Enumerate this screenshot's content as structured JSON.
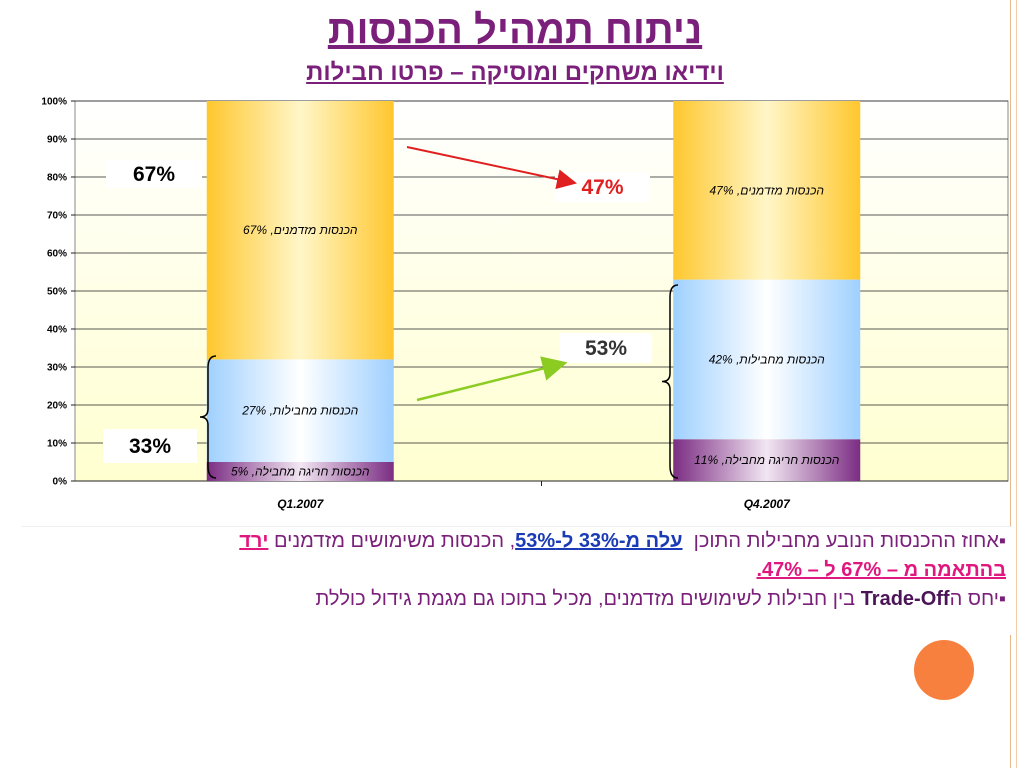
{
  "title": "ניתוח תמהיל הכנסות",
  "subtitle": "וידיאו משחקים ומוסיקה – פרטו חבילות",
  "colors": {
    "title": "#7a1f7a",
    "segment_bottom": "#7b2d83",
    "segment_middle": "#9fd0ff",
    "segment_top": "#ffc72e",
    "arrow_red": "#e02020",
    "arrow_green": "#8ccc22",
    "bullet_orange": "#f7803e"
  },
  "chart_data": {
    "type": "bar",
    "stacked": true,
    "categories": [
      "Q1.2007",
      "Q4.2007"
    ],
    "series": [
      {
        "name": "הכנסות חריגה מחבילה",
        "values": [
          5,
          11
        ]
      },
      {
        "name": "הכנסות מחבילות",
        "values": [
          27,
          42
        ]
      },
      {
        "name": "הכנסות מזדמנים",
        "values": [
          67,
          47
        ]
      }
    ],
    "data_labels": [
      [
        "הכנסות חריגה מחבילה, 5%",
        "הכנסות חריגה מחבילה, 11%"
      ],
      [
        "הכנסות מחבילות, 27%",
        "הכנסות מחבילות, 42%"
      ],
      [
        "הכנסות מזדמנים, 67%",
        "הכנסות מזדמנים, 47%"
      ]
    ],
    "y_ticks": [
      "0%",
      "10%",
      "20%",
      "30%",
      "40%",
      "50%",
      "60%",
      "70%",
      "80%",
      "90%",
      "100%"
    ],
    "ylim": [
      0,
      100
    ],
    "grid": true,
    "annotations": {
      "q1_top": "67%",
      "q1_bottom": "33%",
      "q4_top": "47%",
      "q4_bottom": "53%"
    }
  },
  "bullets": {
    "b1_prefix": "▪אחוז ההכנסות הנובע מחבילות התוכן",
    "b1_rise": "עלה מ-33% ל-53%",
    "b1_mid": ", הכנסות משימושים מזדמנים",
    "b1_fell": "ירד",
    "b1_line2": "בהתאמה מ – 67% ל – 47%.",
    "b2_prefix": "▪יחס ה",
    "b2_bold": "Trade-Off",
    "b2_suffix": " בין חבילות לשימושים מזדמנים, מכיל בתוכו גם מגמת גידול כוללת"
  }
}
